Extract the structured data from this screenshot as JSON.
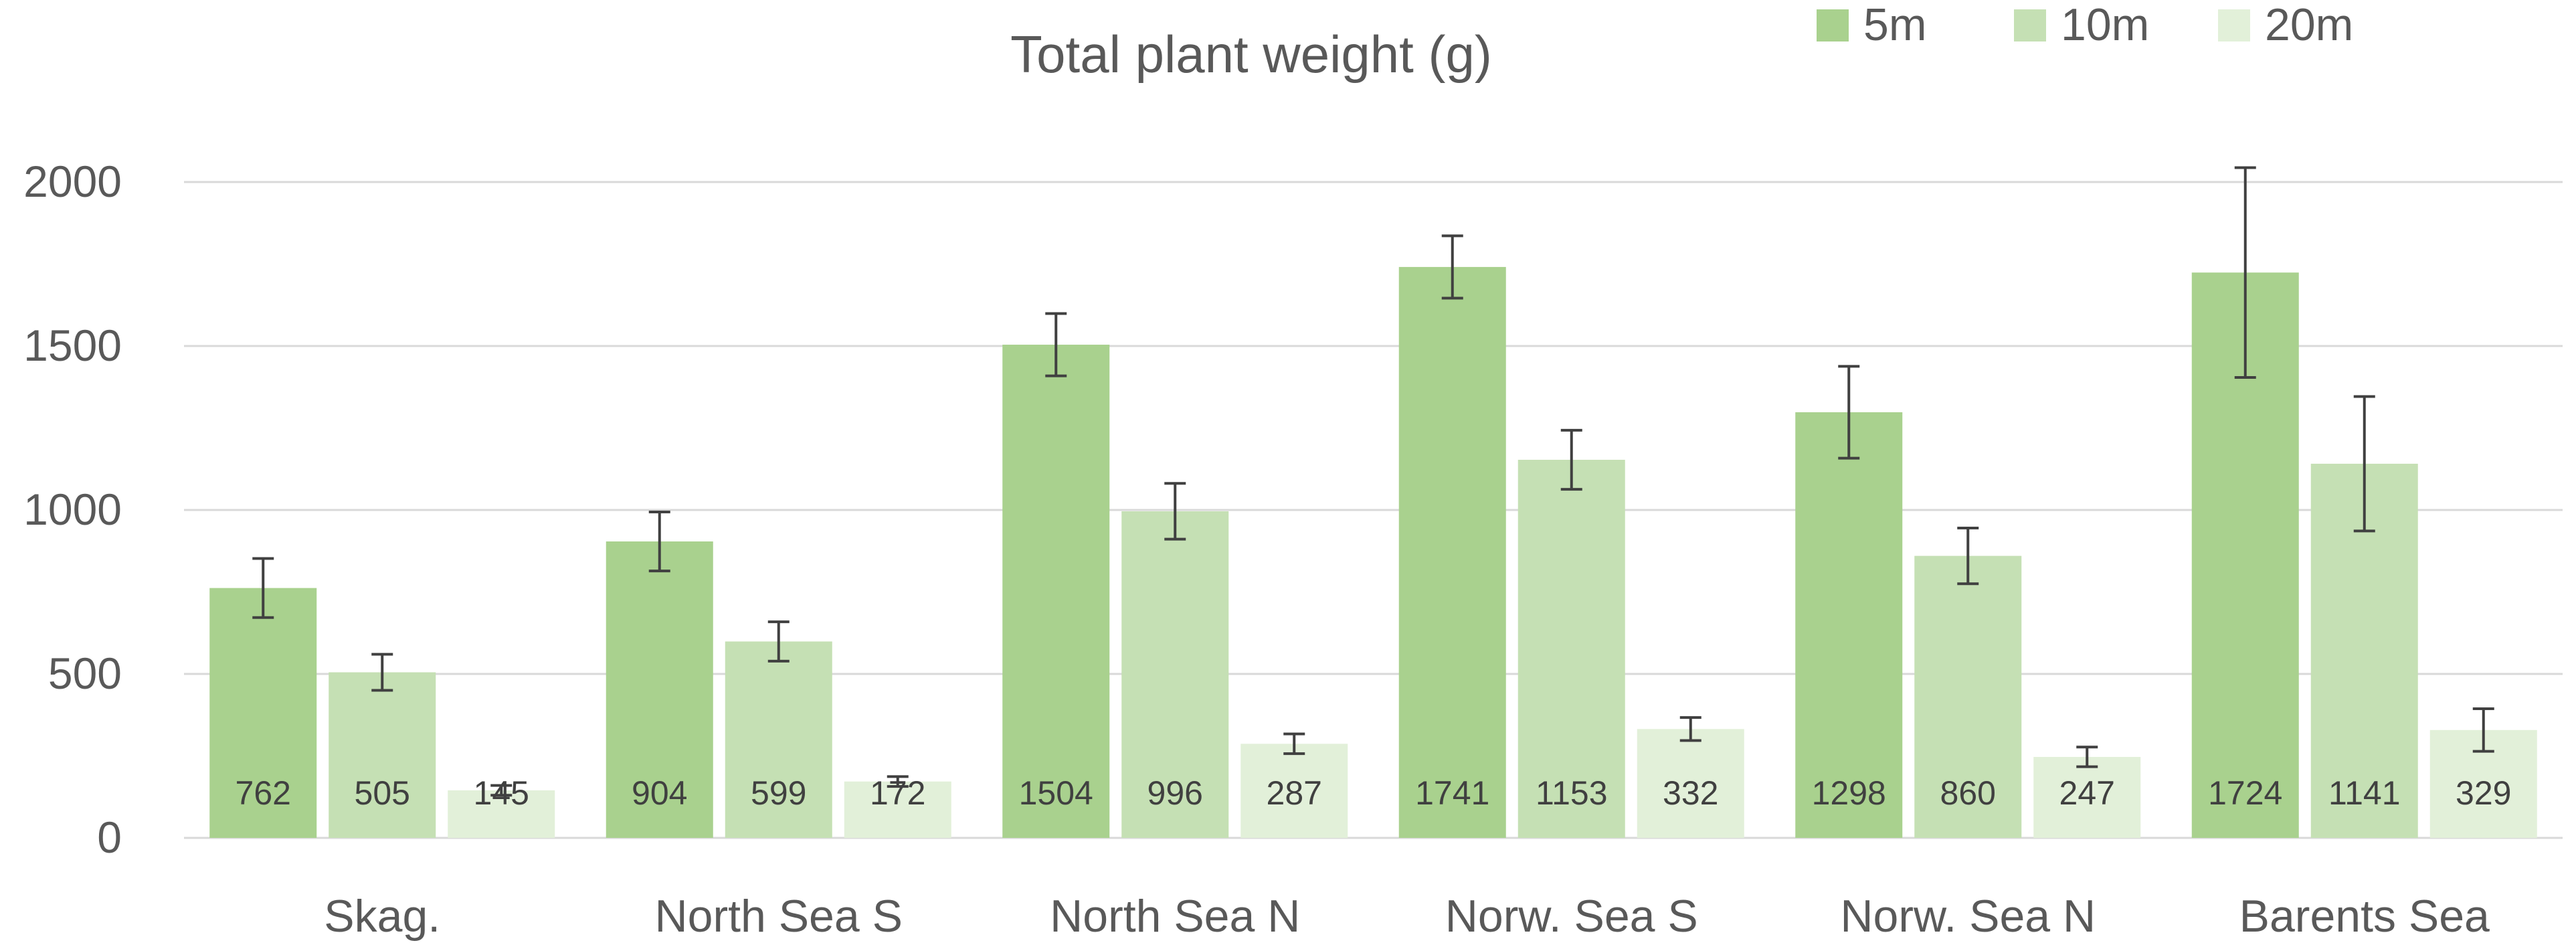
{
  "chart_data": {
    "type": "bar",
    "title": "Total plant weight (g)",
    "xlabel": "",
    "ylabel": "",
    "categories": [
      "Skag.",
      "North Sea S",
      "North Sea N",
      "Norw. Sea S",
      "Norw. Sea N",
      "Barents Sea"
    ],
    "series": [
      {
        "name": "5m",
        "color": "#a9d18e",
        "values": [
          762,
          904,
          1504,
          1741,
          1298,
          1724
        ],
        "labels": [
          "762",
          "904",
          "1504",
          "1741",
          "1298",
          "1724"
        ],
        "error": [
          90,
          90,
          95,
          95,
          140,
          320
        ]
      },
      {
        "name": "10m",
        "color": "#c5e0b4",
        "values": [
          505,
          599,
          996,
          1153,
          860,
          1141
        ],
        "labels": [
          "505",
          "599",
          "996",
          "1153",
          "860",
          "1141"
        ],
        "error": [
          55,
          60,
          85,
          90,
          85,
          205
        ]
      },
      {
        "name": "20m",
        "color": "#e2f0d9",
        "values": [
          145,
          172,
          287,
          332,
          247,
          329
        ],
        "labels": [
          "145",
          "172",
          "287",
          "332",
          "247",
          "329"
        ],
        "error": [
          15,
          15,
          30,
          35,
          30,
          65
        ]
      }
    ],
    "ylim": [
      0,
      2000
    ],
    "yticks": [
      0,
      500,
      1000,
      1500,
      2000
    ],
    "ytick_labels": [
      "0",
      "500",
      "1000",
      "1500",
      "2000"
    ],
    "grid": true,
    "legend_position": "top-right"
  }
}
